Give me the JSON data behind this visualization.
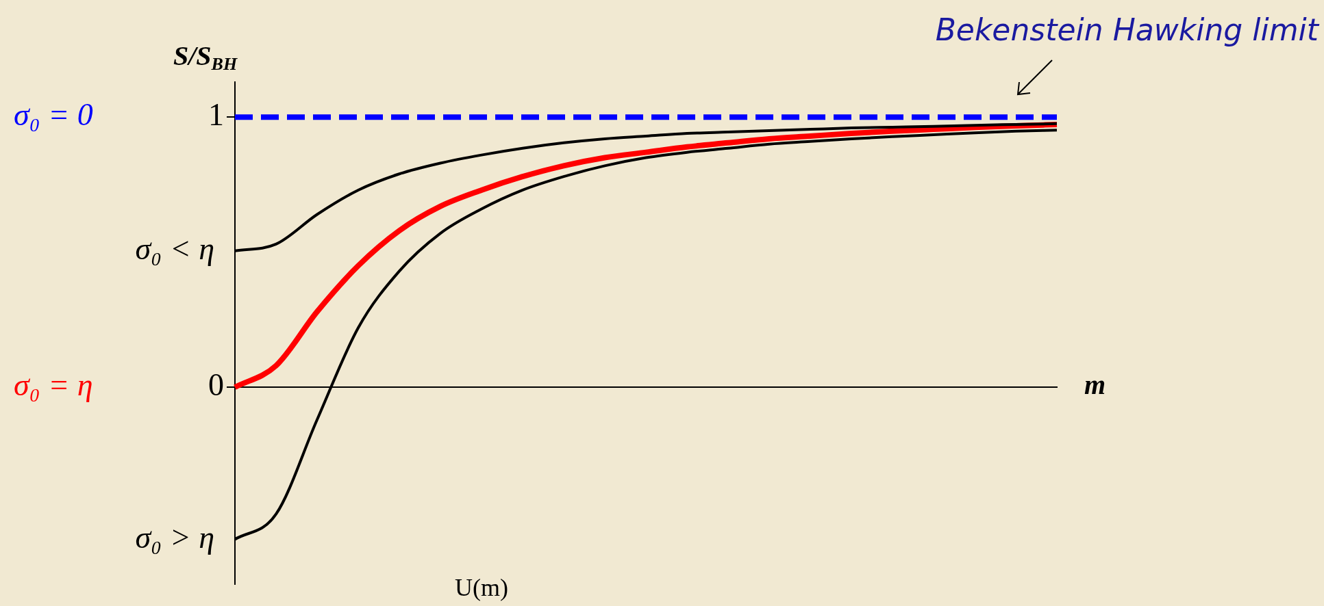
{
  "chart_data": {
    "type": "line",
    "ylabel": "S/S$_{BH}$",
    "xlabel": "m",
    "categories": [
      null,
      null,
      null,
      null,
      null,
      null,
      null,
      null,
      null,
      null,
      null,
      null,
      null,
      null,
      null,
      null,
      null,
      null,
      null,
      null,
      null
    ],
    "series": [
      {
        "name": "σ₀ = 0",
        "color": "#0000ff",
        "line_style": "dashed",
        "values": [
          1,
          1,
          1,
          1,
          1,
          1,
          1,
          1,
          1,
          1,
          1,
          1,
          1,
          1,
          1,
          1,
          1,
          1,
          1,
          1,
          1
        ]
      },
      {
        "name": "σ₀ < η",
        "color": "#000000",
        "values": [
          0.505,
          0.53,
          0.64,
          0.73,
          0.79,
          0.83,
          0.86,
          0.885,
          0.905,
          0.92,
          0.93,
          0.94,
          0.945,
          0.95,
          0.955,
          0.96,
          0.963,
          0.966,
          0.97,
          0.973,
          0.976
        ]
      },
      {
        "name": "σ₀ = η",
        "color": "#ff0000",
        "values": [
          0,
          0.08,
          0.28,
          0.45,
          0.58,
          0.67,
          0.73,
          0.78,
          0.82,
          0.85,
          0.87,
          0.89,
          0.905,
          0.92,
          0.93,
          0.94,
          0.948,
          0.955,
          0.962,
          0.968,
          0.973
        ]
      },
      {
        "name": "σ₀ > η",
        "color": "#000000",
        "values": [
          -0.563,
          -0.47,
          -0.12,
          0.22,
          0.43,
          0.57,
          0.66,
          0.73,
          0.78,
          0.82,
          0.85,
          0.87,
          0.885,
          0.9,
          0.91,
          0.92,
          0.928,
          0.935,
          0.942,
          0.948,
          0.952
        ]
      }
    ],
    "ylim": [
      -0.73,
      1.13
    ],
    "yticks": [
      0,
      1
    ],
    "tick_labels": "y",
    "legend": false,
    "grid": false,
    "marker": "none",
    "annotations": [
      "Bekenstein Hawking limit",
      "U(m)"
    ]
  }
}
